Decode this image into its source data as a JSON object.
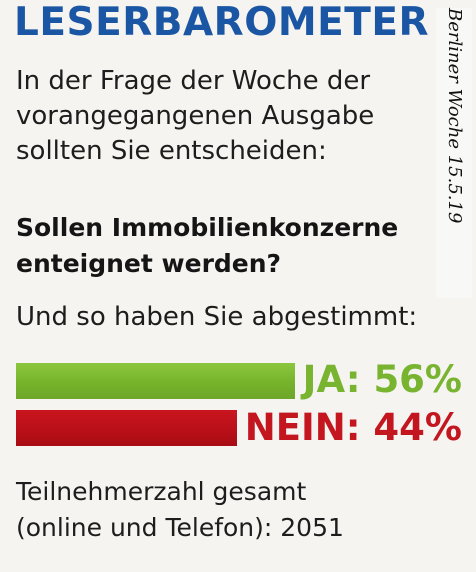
{
  "header": {
    "title": "LESERBAROMETER"
  },
  "intro_text": "In der Frage der Woche der vorangegangenen Ausgabe sollten Sie entscheiden:",
  "question": "Sollen Immobilienkonzerne enteignet werden?",
  "subline": "Und so haben Sie abgestimmt:",
  "side_note": "Berliner Woche 15.5.19",
  "colors": {
    "headline": "#1a56a4",
    "yes": "#79b431",
    "no": "#c3161f"
  },
  "chart_data": {
    "type": "bar",
    "orientation": "horizontal",
    "categories": [
      "JA",
      "NEIN"
    ],
    "values": [
      56,
      44
    ],
    "labels": [
      "JA: 56%",
      "NEIN: 44%"
    ],
    "unit": "%",
    "colors": [
      "#79b431",
      "#c3161f"
    ],
    "xlim": [
      0,
      100
    ]
  },
  "footer": {
    "line1": "Teilnehmerzahl gesamt",
    "line2": "(online und Telefon): 2051"
  }
}
